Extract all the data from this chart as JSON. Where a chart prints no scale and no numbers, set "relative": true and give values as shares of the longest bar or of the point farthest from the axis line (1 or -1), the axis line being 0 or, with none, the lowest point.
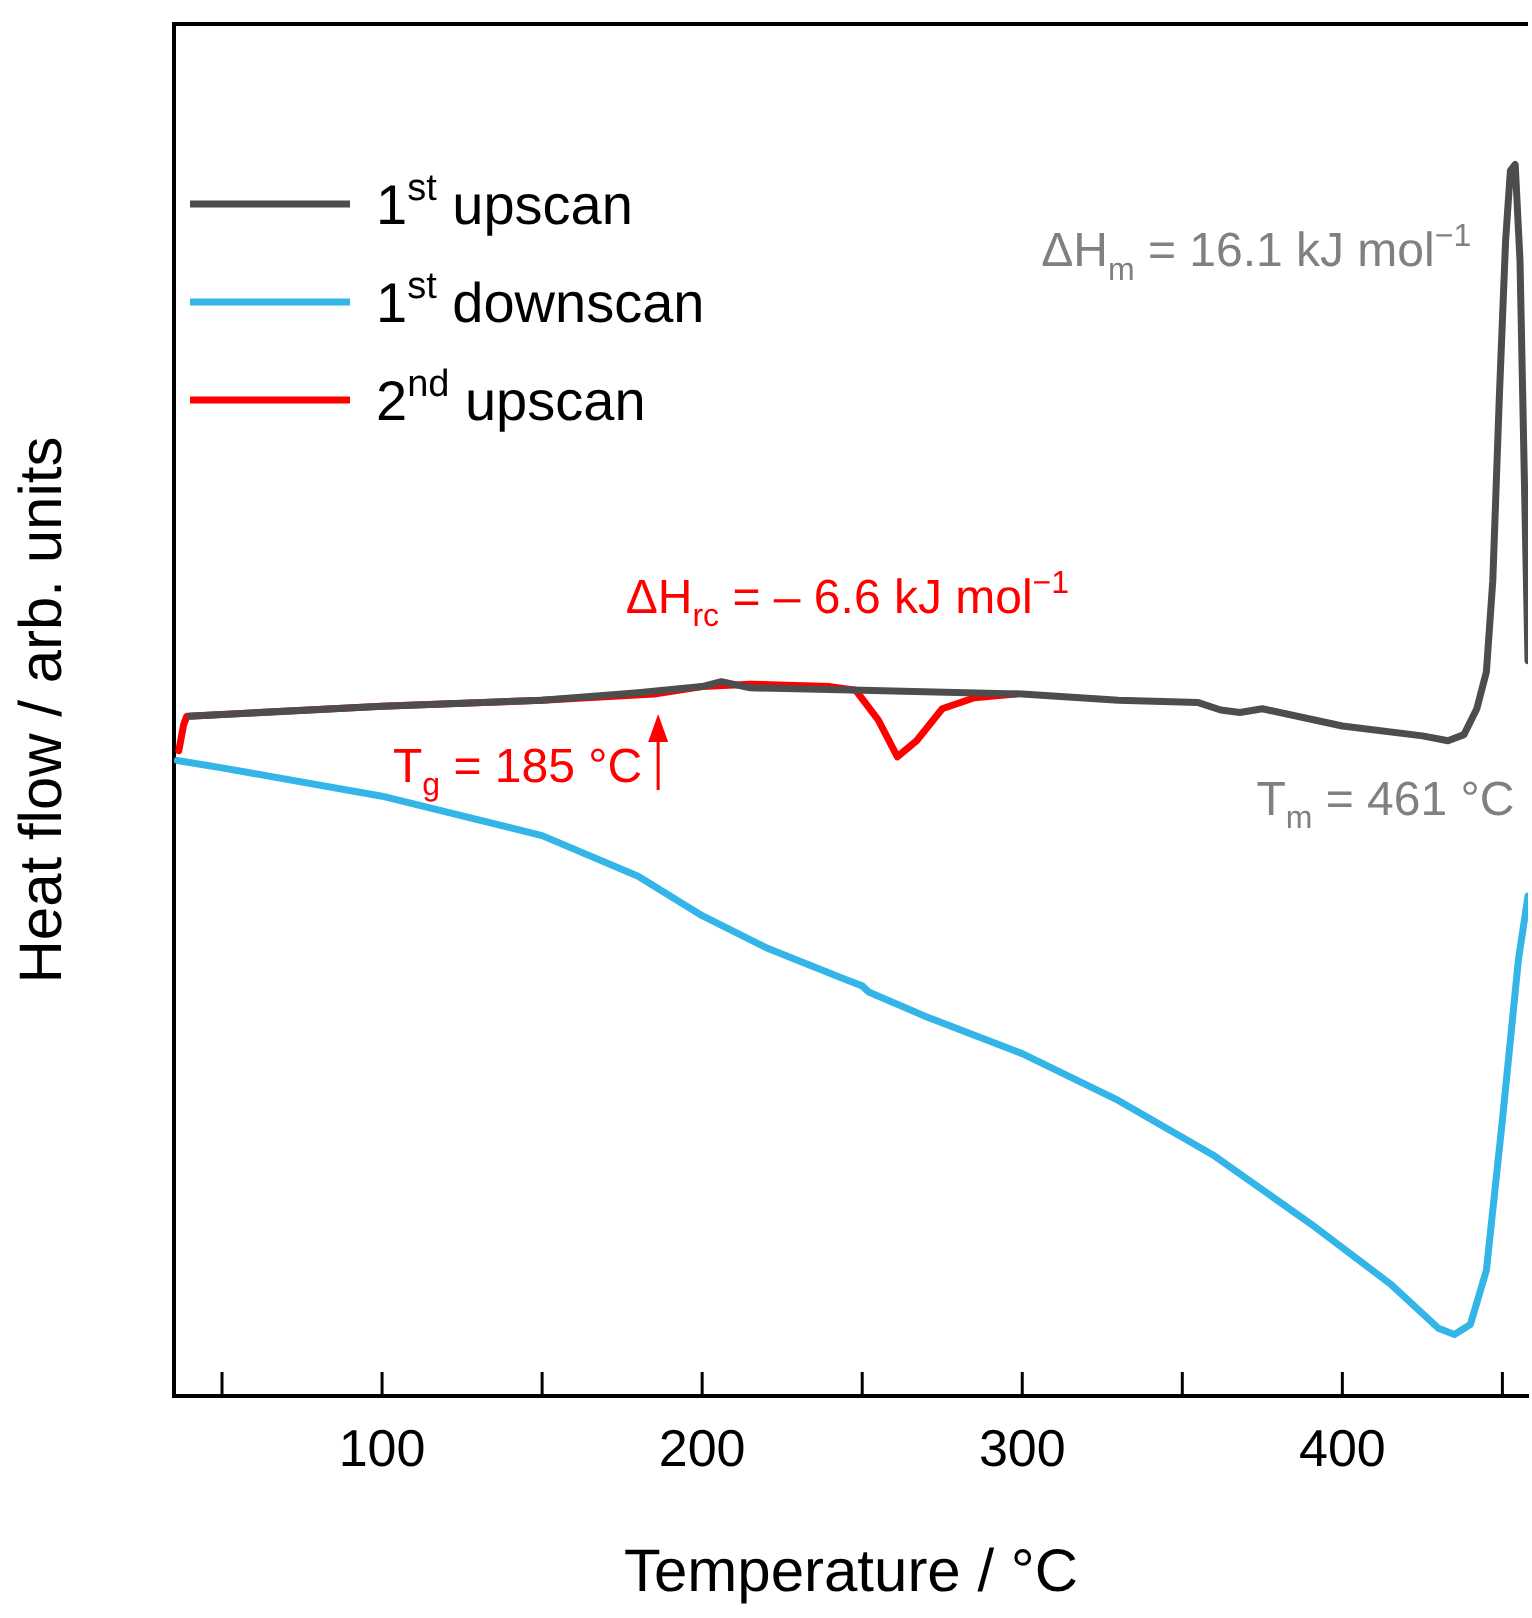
{
  "chart_data": {
    "type": "line",
    "xlabel": "Temperature / °C",
    "ylabel": "Heat flow / arb. units",
    "relative": true,
    "xlim": [
      35,
      458
    ],
    "xticks": [
      {
        "value": 50,
        "label": null
      },
      100,
      {
        "value": 150,
        "label": null
      },
      200,
      {
        "value": 250,
        "label": null
      },
      300,
      {
        "value": 350,
        "label": null
      },
      400,
      {
        "value": 450,
        "label": null
      }
    ],
    "legend": "top left",
    "marker": "none",
    "line_style": "solid",
    "series": [
      {
        "name": "1$^{st}$ upscan",
        "color": "#4d4d4d",
        "x": [
          40,
          100,
          150,
          180,
          200,
          206,
          215,
          250,
          300,
          330,
          355,
          362,
          368,
          375,
          400,
          425,
          433,
          438,
          442,
          445,
          447,
          449,
          451,
          452.5,
          454,
          455.5,
          457,
          458
        ],
        "values": [
          0.552,
          0.56,
          0.565,
          0.571,
          0.576,
          0.58,
          0.575,
          0.573,
          0.57,
          0.565,
          0.563,
          0.557,
          0.555,
          0.558,
          0.544,
          0.536,
          0.532,
          0.537,
          0.558,
          0.588,
          0.662,
          0.808,
          0.938,
          0.995,
          1,
          0.922,
          0.727,
          0.597
        ]
      },
      {
        "name": "1$^{st}$ downscan",
        "color": "#33b5e8",
        "x": [
          36,
          50,
          100,
          150,
          180,
          200,
          220,
          245,
          250,
          252,
          270,
          300,
          330,
          360,
          390,
          415,
          430,
          435,
          440,
          445,
          450,
          455,
          458
        ],
        "values": [
          0.516,
          0.51,
          0.487,
          0.455,
          0.422,
          0.39,
          0.364,
          0.338,
          0.333,
          0.328,
          0.308,
          0.278,
          0.24,
          0.195,
          0.14,
          0.091,
          0.055,
          0.05,
          0.058,
          0.102,
          0.224,
          0.354,
          0.406
        ]
      },
      {
        "name": "2$^{nd}$ upscan",
        "color": "#ff0000",
        "x": [
          36.5,
          38,
          39,
          100,
          150,
          185,
          200,
          215,
          240,
          248,
          255,
          261,
          267,
          275,
          285,
          298
        ],
        "values": [
          0.524,
          0.545,
          0.552,
          0.56,
          0.565,
          0.57,
          0.576,
          0.578,
          0.576,
          0.573,
          0.549,
          0.519,
          0.532,
          0.558,
          0.567,
          0.57
        ]
      }
    ],
    "annotations": [
      {
        "text": "ΔH$_{rc}$ = – 6.6 kJ mol$^{−1}$",
        "x": 261,
        "y": 0.519
      },
      {
        "text": "T$_{g}$ = 185 °C",
        "x": 185,
        "y": 0.57
      },
      {
        "text": "ΔH$_{m}$ = 16.1 kJ mol$^{−1}$",
        "x": 454,
        "y": 1
      },
      {
        "text": "T$_{m}$ = 461 °C",
        "x": 435,
        "y": 0.532
      }
    ]
  }
}
